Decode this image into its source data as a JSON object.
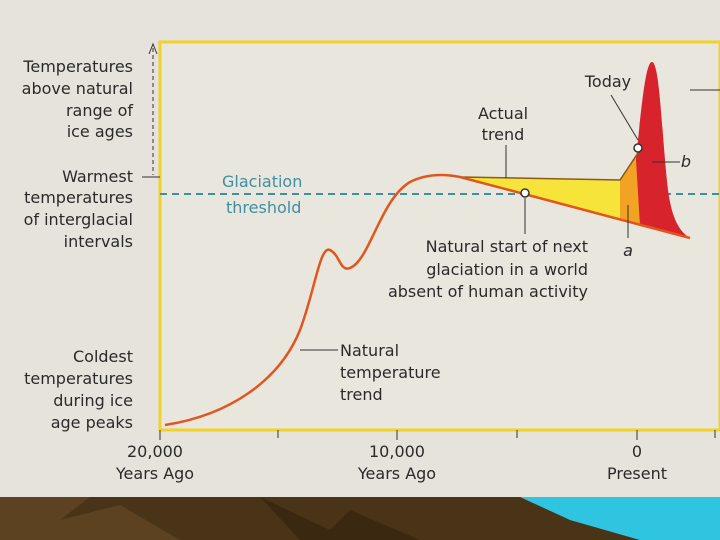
{
  "y_labels": [
    [
      "Temperatures",
      "above natural",
      "range of",
      "ice ages"
    ],
    [
      "Warmest",
      "temperatures",
      "of interglacial",
      "intervals"
    ],
    [
      "Coldest",
      "temperatures",
      "during ice",
      "age peaks"
    ]
  ],
  "threshold_label": [
    "Glaciation",
    "threshold"
  ],
  "annotations": {
    "actual_trend": [
      "Actual",
      "trend"
    ],
    "today": "Today",
    "b": "b",
    "a": "a",
    "natural_start": [
      "Natural start of next",
      "glaciation in a world",
      "absent of human activity"
    ],
    "natural_trend": [
      "Natural",
      "temperature",
      "trend"
    ]
  },
  "x_labels": [
    [
      "20,000",
      "Years Ago"
    ],
    [
      "10,000",
      "Years Ago"
    ],
    [
      "0",
      "Present"
    ]
  ]
}
